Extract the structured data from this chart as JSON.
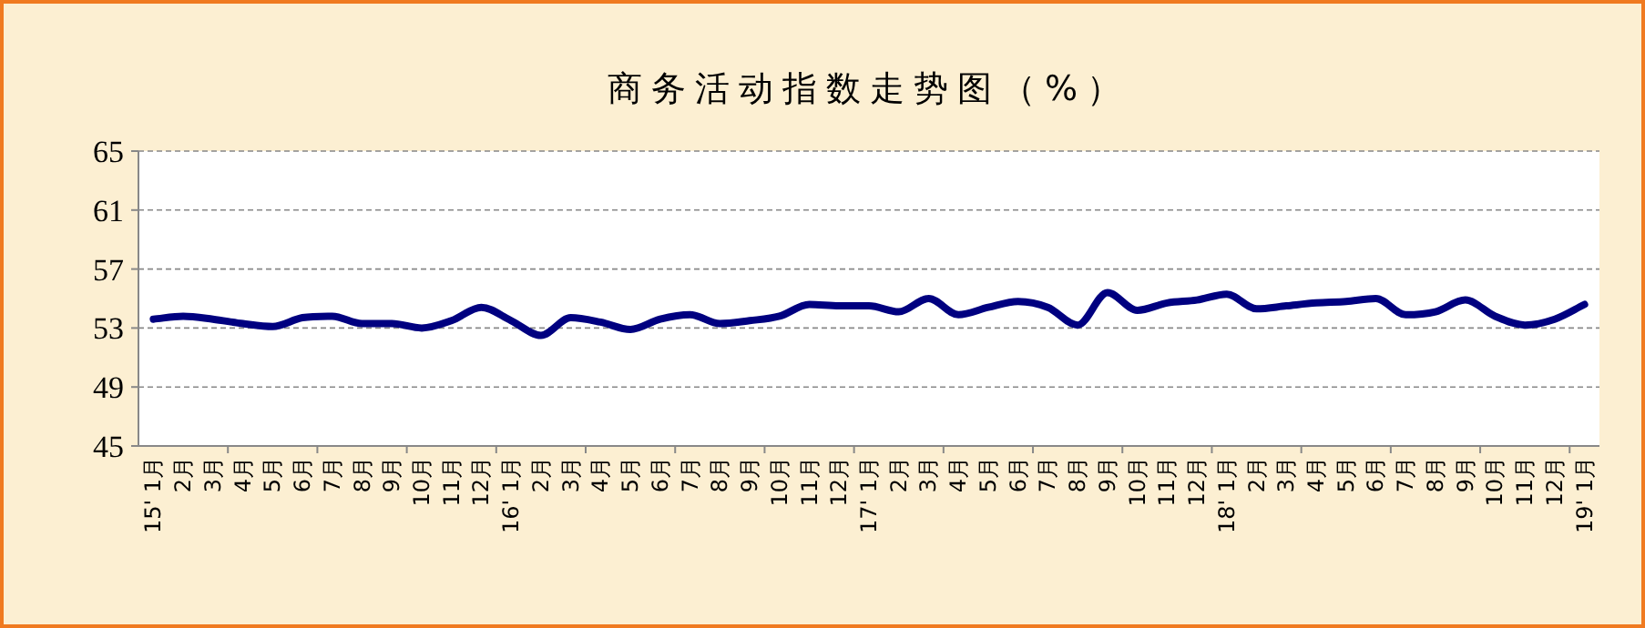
{
  "chart_data": {
    "type": "line",
    "title": "商务活动指数走势图（%）",
    "categories": [
      "15' 1月",
      "2月",
      "3月",
      "4月",
      "5月",
      "6月",
      "7月",
      "8月",
      "9月",
      "10月",
      "11月",
      "12月",
      "16' 1月",
      "2月",
      "3月",
      "4月",
      "5月",
      "6月",
      "7月",
      "8月",
      "9月",
      "10月",
      "11月",
      "12月",
      "17' 1月",
      "2月",
      "3月",
      "4月",
      "5月",
      "6月",
      "7月",
      "8月",
      "9月",
      "10月",
      "11月",
      "12月",
      "18' 1月",
      "2月",
      "3月",
      "4月",
      "5月",
      "6月",
      "7月",
      "8月",
      "9月",
      "10月",
      "11月",
      "12月",
      "19' 1月"
    ],
    "series": [
      {
        "color": "#000080",
        "values": [
          53.6,
          53.8,
          53.6,
          53.3,
          53.1,
          53.7,
          53.8,
          53.3,
          53.3,
          53.0,
          53.5,
          54.4,
          53.5,
          52.5,
          53.7,
          53.4,
          52.9,
          53.6,
          53.9,
          53.3,
          53.5,
          53.8,
          54.6,
          54.5,
          54.5,
          54.1,
          55.0,
          53.9,
          54.4,
          54.8,
          54.4,
          53.2,
          55.4,
          54.2,
          54.7,
          54.9,
          55.3,
          54.3,
          54.5,
          54.7,
          54.8,
          55.0,
          53.9,
          54.1,
          54.9,
          53.8,
          53.2,
          53.6,
          54.6
        ]
      }
    ],
    "ylim": [
      45,
      65
    ],
    "yticks": [
      45,
      49,
      53,
      57,
      61,
      65
    ],
    "grid": "y",
    "marker": "none",
    "line_style": "solid"
  }
}
